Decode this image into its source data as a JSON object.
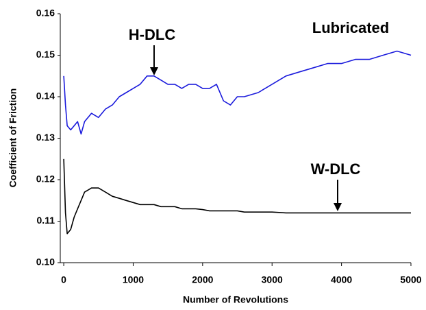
{
  "chart_data": {
    "type": "line",
    "xlabel": "Number of Revolutions",
    "ylabel": "Coefficient of Friction",
    "annotations": [
      "H-DLC",
      "W-DLC",
      "Lubricated"
    ],
    "x": [
      0,
      25,
      50,
      100,
      150,
      200,
      250,
      300,
      400,
      500,
      600,
      700,
      800,
      900,
      1000,
      1100,
      1200,
      1300,
      1400,
      1500,
      1600,
      1700,
      1800,
      1900,
      2000,
      2100,
      2200,
      2300,
      2400,
      2500,
      2600,
      2800,
      3000,
      3200,
      3400,
      3600,
      3800,
      4000,
      4200,
      4400,
      4600,
      4800,
      5000
    ],
    "series": [
      {
        "name": "H-DLC",
        "color": "#1a1adc",
        "values": [
          0.145,
          0.138,
          0.133,
          0.132,
          0.133,
          0.134,
          0.131,
          0.134,
          0.136,
          0.135,
          0.137,
          0.138,
          0.14,
          0.141,
          0.142,
          0.143,
          0.145,
          0.145,
          0.144,
          0.143,
          0.143,
          0.142,
          0.143,
          0.143,
          0.142,
          0.142,
          0.143,
          0.139,
          0.138,
          0.14,
          0.14,
          0.141,
          0.143,
          0.145,
          0.146,
          0.147,
          0.148,
          0.148,
          0.149,
          0.149,
          0.15,
          0.151,
          0.15
        ]
      },
      {
        "name": "W-DLC",
        "color": "#000000",
        "values": [
          0.125,
          0.112,
          0.107,
          0.108,
          0.111,
          0.113,
          0.115,
          0.117,
          0.118,
          0.118,
          0.117,
          0.116,
          0.1155,
          0.115,
          0.1145,
          0.114,
          0.114,
          0.114,
          0.1135,
          0.1135,
          0.1135,
          0.113,
          0.113,
          0.113,
          0.1128,
          0.1125,
          0.1125,
          0.1125,
          0.1125,
          0.1125,
          0.1122,
          0.1122,
          0.1122,
          0.112,
          0.112,
          0.112,
          0.112,
          0.112,
          0.112,
          0.112,
          0.112,
          0.112,
          0.112
        ]
      }
    ],
    "xlim": [
      -50,
      5000
    ],
    "xticks": [
      0,
      1000,
      2000,
      3000,
      4000,
      5000
    ],
    "ylim": [
      0.1,
      0.16
    ],
    "yticks": [
      {
        "value": 0.1,
        "label": "0.10"
      },
      0.11,
      0.12,
      0.13,
      0.14,
      0.15,
      0.16
    ],
    "grid": false
  }
}
